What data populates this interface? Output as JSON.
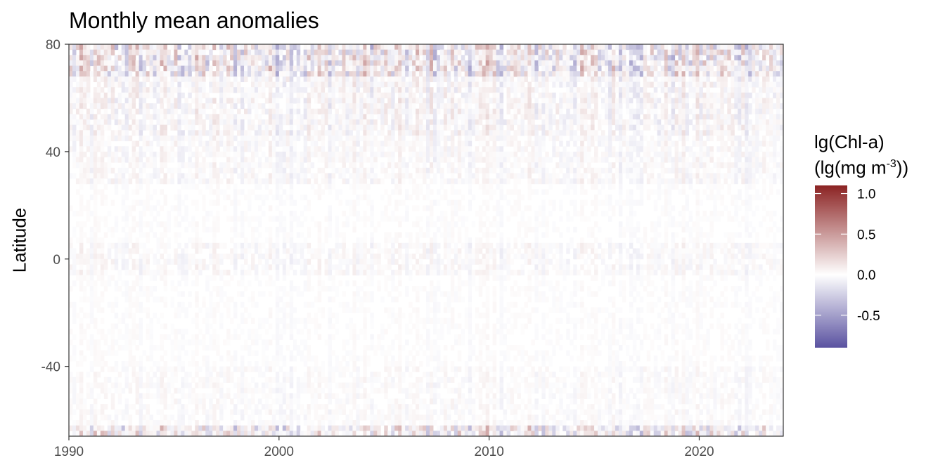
{
  "chart_data": {
    "type": "heatmap",
    "title": "Monthly mean anomalies",
    "xlabel": "",
    "ylabel": "Latitude",
    "xlim": [
      1990,
      2024
    ],
    "ylim": [
      -66,
      80
    ],
    "x_ticks": [
      1990,
      2000,
      2010,
      2020
    ],
    "x_tick_labels": [
      "1990",
      "2000",
      "2010",
      "2020"
    ],
    "y_ticks": [
      -40,
      0,
      40,
      80
    ],
    "y_tick_labels": [
      "-40",
      "0",
      "40",
      "80"
    ],
    "grid": false,
    "colorbar": {
      "title_line1": "lg(Chl-a)",
      "title_line2_prefix": "(lg(mg m",
      "title_line2_sup": "-3",
      "title_line2_suffix": "))",
      "range": [
        -0.9,
        1.1
      ],
      "ticks": [
        -0.5,
        0.0,
        0.5,
        1.0
      ],
      "tick_labels": [
        "-0.5",
        "0.0",
        "0.5",
        "1.0"
      ],
      "colors": {
        "low": "#5a52a0",
        "mid": "#ffffff",
        "high": "#8b2323"
      },
      "placement": "right"
    }
  }
}
